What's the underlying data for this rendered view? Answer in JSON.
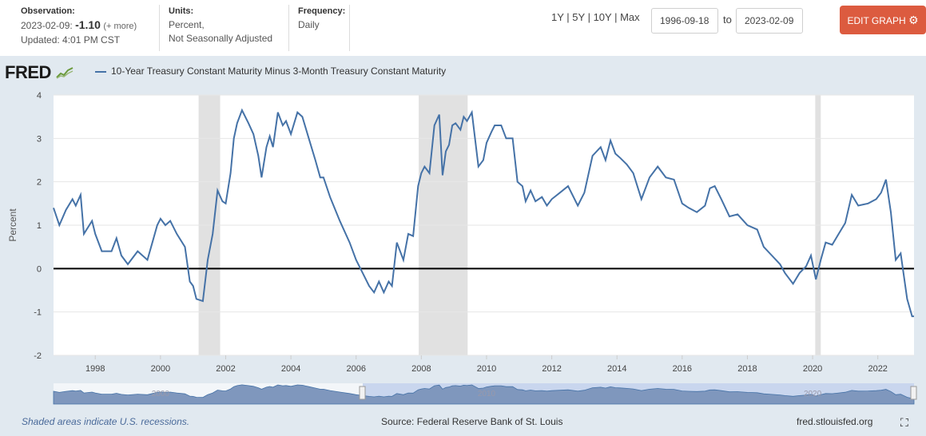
{
  "header": {
    "observation_label": "Observation:",
    "observation_date": "2023-02-09:",
    "observation_value": "-1.10",
    "observation_more": "(+ more)",
    "updated": "Updated: 4:01 PM CST",
    "units_label": "Units:",
    "units_line1": "Percent,",
    "units_line2": "Not Seasonally Adjusted",
    "frequency_label": "Frequency:",
    "frequency_value": "Daily",
    "range_links": [
      "1Y",
      "5Y",
      "10Y",
      "Max"
    ],
    "range_sep": " | ",
    "start_date": "1996-09-18",
    "to_label": "to",
    "end_date": "2023-02-09",
    "edit_button": "EDIT GRAPH"
  },
  "logo_text": "FRED",
  "footer": {
    "recession_note": "Shaded areas indicate U.S. recessions.",
    "source": "Source: Federal Reserve Bank of St. Louis",
    "site": "fred.stlouisfed.org"
  },
  "colors": {
    "series": "#4572a7",
    "recession": "#e1e1e1",
    "frame": "#e1e9f0",
    "edit_button": "#dc5b3f"
  },
  "chart_data": {
    "type": "line",
    "title": "",
    "xlabel": "",
    "ylabel": "Percent",
    "xlim": [
      1996.72,
      2023.11
    ],
    "ylim": [
      -2,
      4
    ],
    "yticks": [
      -2,
      -1,
      0,
      1,
      2,
      3,
      4
    ],
    "xticks": [
      1998,
      2000,
      2002,
      2004,
      2006,
      2008,
      2010,
      2012,
      2014,
      2016,
      2018,
      2020,
      2022
    ],
    "zero_line": true,
    "recessions": [
      [
        2001.17,
        2001.83
      ],
      [
        2007.92,
        2009.42
      ],
      [
        2020.08,
        2020.25
      ]
    ],
    "series": [
      {
        "name": "10-Year Treasury Constant Maturity Minus 3-Month Treasury Constant Maturity",
        "x": [
          1996.72,
          1996.9,
          1997.1,
          1997.3,
          1997.4,
          1997.55,
          1997.65,
          1997.9,
          1998.0,
          1998.2,
          1998.5,
          1998.65,
          1998.8,
          1999.0,
          1999.3,
          1999.6,
          1999.75,
          1999.9,
          2000.0,
          2000.15,
          2000.3,
          2000.5,
          2000.75,
          2000.9,
          2001.0,
          2001.1,
          2001.3,
          2001.45,
          2001.6,
          2001.75,
          2001.9,
          2002.0,
          2002.15,
          2002.25,
          2002.35,
          2002.5,
          2002.7,
          2002.85,
          2003.0,
          2003.1,
          2003.25,
          2003.35,
          2003.45,
          2003.6,
          2003.75,
          2003.85,
          2004.0,
          2004.2,
          2004.35,
          2004.55,
          2004.75,
          2004.9,
          2005.0,
          2005.2,
          2005.5,
          2005.8,
          2006.0,
          2006.2,
          2006.4,
          2006.55,
          2006.7,
          2006.85,
          2007.0,
          2007.1,
          2007.25,
          2007.45,
          2007.6,
          2007.75,
          2007.9,
          2008.0,
          2008.1,
          2008.25,
          2008.4,
          2008.55,
          2008.65,
          2008.75,
          2008.85,
          2008.95,
          2009.05,
          2009.2,
          2009.3,
          2009.4,
          2009.55,
          2009.75,
          2009.9,
          2010.0,
          2010.15,
          2010.25,
          2010.45,
          2010.6,
          2010.8,
          2010.95,
          2011.1,
          2011.2,
          2011.35,
          2011.5,
          2011.7,
          2011.85,
          2012.0,
          2012.25,
          2012.5,
          2012.8,
          2013.0,
          2013.25,
          2013.5,
          2013.65,
          2013.8,
          2013.95,
          2014.1,
          2014.3,
          2014.5,
          2014.75,
          2015.0,
          2015.25,
          2015.5,
          2015.75,
          2016.0,
          2016.2,
          2016.45,
          2016.7,
          2016.85,
          2017.0,
          2017.2,
          2017.45,
          2017.7,
          2018.0,
          2018.3,
          2018.5,
          2018.75,
          2019.0,
          2019.15,
          2019.4,
          2019.6,
          2019.8,
          2019.95,
          2020.1,
          2020.25,
          2020.4,
          2020.6,
          2020.8,
          2021.0,
          2021.2,
          2021.4,
          2021.7,
          2021.95,
          2022.1,
          2022.25,
          2022.4,
          2022.55,
          2022.7,
          2022.9,
          2023.05,
          2023.11
        ],
        "values": [
          1.4,
          1.0,
          1.35,
          1.6,
          1.45,
          1.7,
          0.8,
          1.1,
          0.8,
          0.4,
          0.4,
          0.7,
          0.3,
          0.1,
          0.4,
          0.2,
          0.6,
          1.0,
          1.15,
          1.0,
          1.1,
          0.8,
          0.5,
          -0.3,
          -0.4,
          -0.7,
          -0.75,
          0.2,
          0.8,
          1.8,
          1.55,
          1.5,
          2.2,
          3.0,
          3.35,
          3.65,
          3.35,
          3.1,
          2.6,
          2.1,
          2.8,
          3.05,
          2.8,
          3.6,
          3.3,
          3.4,
          3.1,
          3.6,
          3.5,
          3.0,
          2.5,
          2.1,
          2.1,
          1.65,
          1.1,
          0.6,
          0.2,
          -0.1,
          -0.4,
          -0.55,
          -0.3,
          -0.55,
          -0.3,
          -0.4,
          0.6,
          0.2,
          0.8,
          0.75,
          1.9,
          2.2,
          2.35,
          2.2,
          3.3,
          3.55,
          2.15,
          2.7,
          2.85,
          3.3,
          3.35,
          3.2,
          3.5,
          3.4,
          3.6,
          2.35,
          2.5,
          2.9,
          3.15,
          3.3,
          3.3,
          3.0,
          3.0,
          2.0,
          1.9,
          1.55,
          1.8,
          1.55,
          1.65,
          1.45,
          1.6,
          1.75,
          1.9,
          1.45,
          1.75,
          2.6,
          2.8,
          2.5,
          2.95,
          2.65,
          2.55,
          2.4,
          2.2,
          1.6,
          2.1,
          2.35,
          2.1,
          2.05,
          1.5,
          1.4,
          1.3,
          1.45,
          1.85,
          1.9,
          1.6,
          1.2,
          1.25,
          1.0,
          0.9,
          0.5,
          0.3,
          0.1,
          -0.1,
          -0.35,
          -0.1,
          0.05,
          0.3,
          -0.25,
          0.2,
          0.6,
          0.55,
          0.8,
          1.05,
          1.7,
          1.45,
          1.5,
          1.6,
          1.75,
          2.05,
          1.3,
          0.2,
          0.35,
          -0.7,
          -1.1,
          -1.1
        ]
      }
    ]
  }
}
